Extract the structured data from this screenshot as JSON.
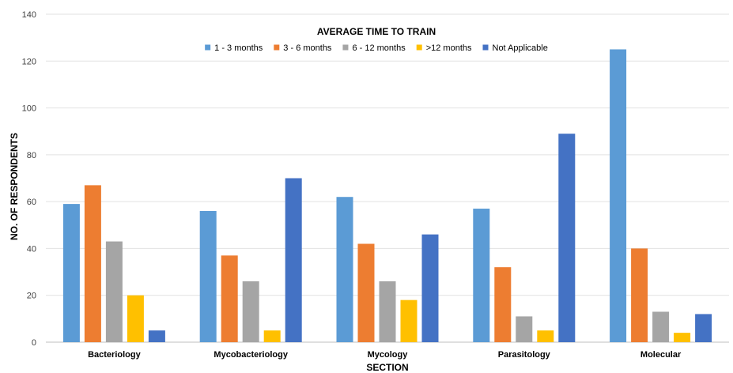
{
  "chart_data": {
    "type": "bar",
    "title": "AVERAGE TIME TO TRAIN",
    "xlabel": "SECTION",
    "ylabel": "NO. OF RESPONDENTS",
    "ylim": [
      0,
      140
    ],
    "yticks": [
      0,
      20,
      40,
      60,
      80,
      100,
      120,
      140
    ],
    "grid": true,
    "legend_position": "top-center",
    "categories": [
      "Bacteriology",
      "Mycobacteriology",
      "Mycology",
      "Parasitology",
      "Molecular"
    ],
    "series": [
      {
        "name": "1 - 3 months",
        "color": "#5b9bd5",
        "values": [
          59,
          56,
          62,
          57,
          125
        ]
      },
      {
        "name": "3 - 6 months",
        "color": "#ed7d31",
        "values": [
          67,
          37,
          42,
          32,
          40
        ]
      },
      {
        "name": "6 - 12 months",
        "color": "#a5a5a5",
        "values": [
          43,
          26,
          26,
          11,
          13
        ]
      },
      {
        "name": ">12 months",
        "color": "#ffc000",
        "values": [
          20,
          5,
          18,
          5,
          4
        ]
      },
      {
        "name": "Not Applicable",
        "color": "#4472c4",
        "values": [
          5,
          70,
          46,
          89,
          12
        ]
      }
    ]
  }
}
